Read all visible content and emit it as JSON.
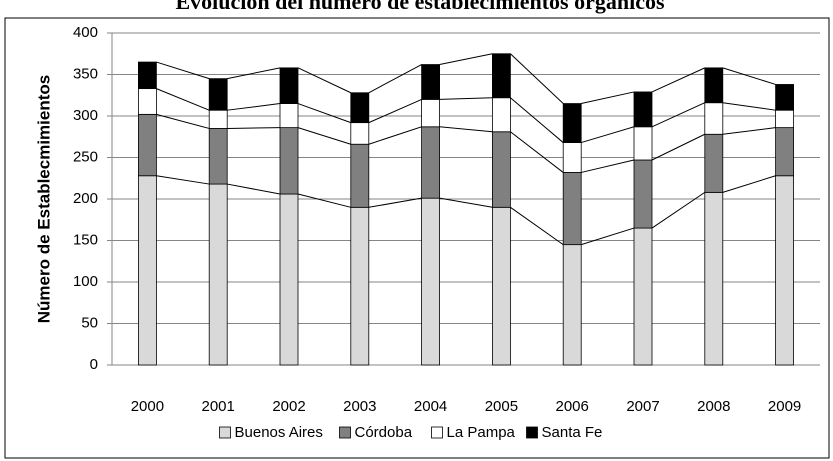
{
  "chart_data": {
    "type": "bar",
    "stacked": true,
    "title": "Evolución del número de establecimientos orgánicos",
    "y_label": "Número de Establecmimientos",
    "categories": [
      "2000",
      "2001",
      "2002",
      "2003",
      "2004",
      "2005",
      "2006",
      "2007",
      "2008",
      "2009"
    ],
    "series": [
      {
        "name": "Buenos Aires",
        "color": "#d9d9d9",
        "values": [
          228,
          218,
          206,
          190,
          201,
          190,
          145,
          165,
          208,
          228
        ]
      },
      {
        "name": "Córdoba",
        "color": "#808080",
        "values": [
          74,
          67,
          80,
          76,
          86,
          91,
          87,
          82,
          70,
          58
        ]
      },
      {
        "name": "La Pampa",
        "color": "#ffffff",
        "values": [
          31,
          22,
          29,
          26,
          33,
          41,
          36,
          40,
          38,
          21
        ]
      },
      {
        "name": "Santa Fe",
        "color": "#000000",
        "values": [
          32,
          38,
          43,
          36,
          42,
          53,
          47,
          42,
          42,
          31
        ]
      }
    ],
    "ylim": [
      0,
      400
    ],
    "yticks": [
      0,
      50,
      100,
      150,
      200,
      250,
      300,
      350,
      400
    ],
    "grid": true,
    "series_lines": true,
    "legend": "bottom"
  }
}
